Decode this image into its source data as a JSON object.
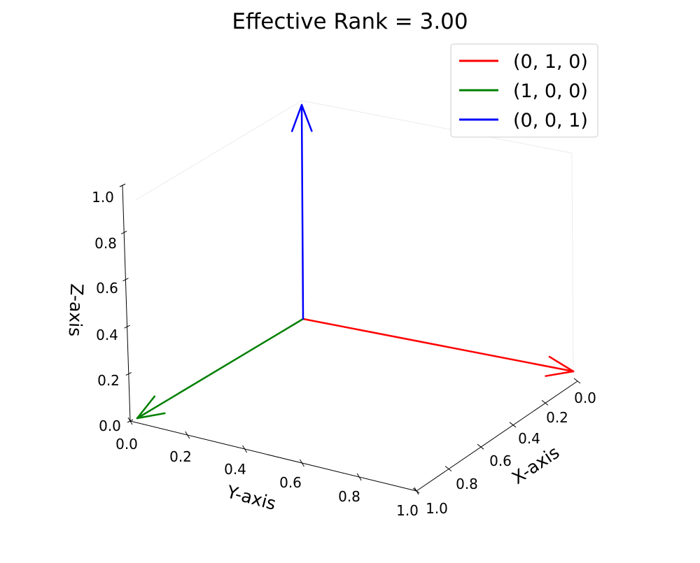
{
  "chart_data": {
    "type": "3d-vector",
    "title": "Effective Rank = 3.00",
    "xlabel": "X-axis",
    "ylabel": "Y-axis",
    "zlabel": "Z-axis",
    "xlim": [
      0,
      1
    ],
    "ylim": [
      0,
      1
    ],
    "zlim": [
      0,
      1
    ],
    "x_ticks": [
      "0.0",
      "0.2",
      "0.4",
      "0.6",
      "0.8",
      "1.0"
    ],
    "y_ticks": [
      "0.0",
      "0.2",
      "0.4",
      "0.6",
      "0.8",
      "1.0"
    ],
    "z_ticks": [
      "0.0",
      "0.2",
      "0.4",
      "0.6",
      "0.8",
      "1.0"
    ],
    "legend_position": "top-right",
    "origin": [
      0,
      0,
      0
    ],
    "series": [
      {
        "name": "(0, 1, 0)",
        "vector": [
          0,
          1,
          0
        ],
        "color": "#ff0000"
      },
      {
        "name": "(1, 0, 0)",
        "vector": [
          1,
          0,
          0
        ],
        "color": "#008000"
      },
      {
        "name": "(0, 0, 1)",
        "vector": [
          0,
          0,
          1
        ],
        "color": "#0000ff"
      }
    ]
  }
}
